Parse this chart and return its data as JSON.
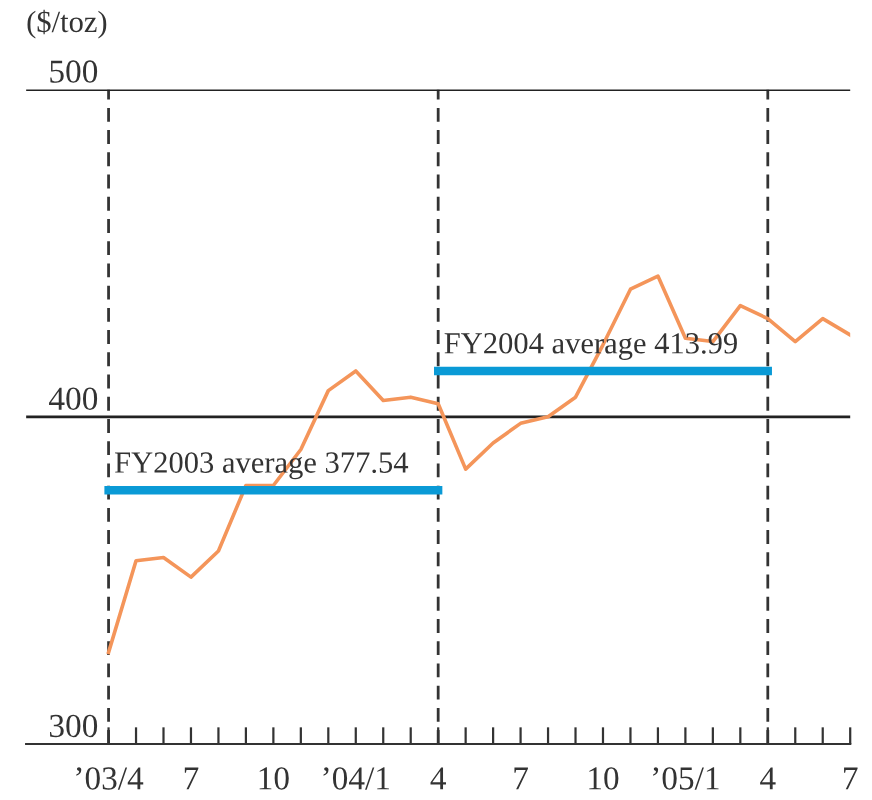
{
  "chart_data": {
    "type": "line",
    "ylabel": "($/toz)",
    "x": [
      "2003-04",
      "2003-05",
      "2003-06",
      "2003-07",
      "2003-08",
      "2003-09",
      "2003-10",
      "2003-11",
      "2003-12",
      "2004-01",
      "2004-02",
      "2004-03",
      "2004-04",
      "2004-05",
      "2004-06",
      "2004-07",
      "2004-08",
      "2004-09",
      "2004-10",
      "2004-11",
      "2004-12",
      "2005-01",
      "2005-02",
      "2005-03",
      "2005-04",
      "2005-05",
      "2005-06",
      "2005-07"
    ],
    "series": [
      {
        "color": "#f4955a",
        "values": [
          328,
          356,
          357,
          351,
          359,
          379,
          379,
          390,
          408,
          414,
          405,
          406,
          404,
          384,
          392,
          398,
          400,
          406,
          422,
          439,
          443,
          424,
          423,
          434,
          430,
          423,
          430,
          425
        ]
      },
      {
        "type": "line",
        "color": "#0a9ad6",
        "x": [
          "2003-04",
          "2004-04"
        ],
        "values": [
          377.54,
          377.54
        ]
      },
      {
        "type": "line",
        "color": "#0a9ad6",
        "x": [
          "2004-04",
          "2005-04"
        ],
        "values": [
          413.99,
          413.99
        ]
      }
    ],
    "annotations": [
      {
        "text": "FY2003 average 377.54",
        "x": "2003-04",
        "y": 377.54
      },
      {
        "text": "FY2004 average 413.99",
        "x": "2004-04",
        "y": 413.99
      }
    ],
    "ref_lines": [
      {
        "axis": "x",
        "value": "2003-04",
        "color": "#333333",
        "line_style": "dashed"
      },
      {
        "axis": "x",
        "value": "2004-04",
        "color": "#333333",
        "line_style": "dashed"
      },
      {
        "axis": "x",
        "value": "2005-04",
        "color": "#333333",
        "line_style": "dashed"
      },
      {
        "axis": "y",
        "value": 400,
        "color": "#222222",
        "line_style": "solid"
      },
      {
        "axis": "y",
        "value": 500,
        "color": "#222222",
        "line_style": "solid"
      }
    ],
    "xlim": [
      "2003-01",
      "2005-07"
    ],
    "xticks": [
      {
        "value": "2003-04",
        "label": "’03/4"
      },
      {
        "value": "2003-05",
        "label": null
      },
      {
        "value": "2003-06",
        "label": null
      },
      {
        "value": "2003-07",
        "label": "7"
      },
      {
        "value": "2003-08",
        "label": null
      },
      {
        "value": "2003-09",
        "label": null
      },
      {
        "value": "2003-10",
        "label": "10"
      },
      {
        "value": "2003-11",
        "label": null
      },
      {
        "value": "2003-12",
        "label": null
      },
      {
        "value": "2004-01",
        "label": "’04/1"
      },
      {
        "value": "2004-02",
        "label": null
      },
      {
        "value": "2004-03",
        "label": null
      },
      {
        "value": "2004-04",
        "label": "4"
      },
      {
        "value": "2004-05",
        "label": null
      },
      {
        "value": "2004-06",
        "label": null
      },
      {
        "value": "2004-07",
        "label": "7"
      },
      {
        "value": "2004-08",
        "label": null
      },
      {
        "value": "2004-09",
        "label": null
      },
      {
        "value": "2004-10",
        "label": "10"
      },
      {
        "value": "2004-11",
        "label": null
      },
      {
        "value": "2004-12",
        "label": null
      },
      {
        "value": "2005-01",
        "label": "’05/1"
      },
      {
        "value": "2005-02",
        "label": null
      },
      {
        "value": "2005-03",
        "label": null
      },
      {
        "value": "2005-04",
        "label": "4"
      },
      {
        "value": "2005-05",
        "label": null
      },
      {
        "value": "2005-06",
        "label": null
      },
      {
        "value": "2005-07",
        "label": "7"
      }
    ],
    "ylim": [
      300,
      500
    ],
    "yticks": [
      300,
      400,
      500
    ],
    "legend": false,
    "marker": "none",
    "line_style": "solid"
  }
}
